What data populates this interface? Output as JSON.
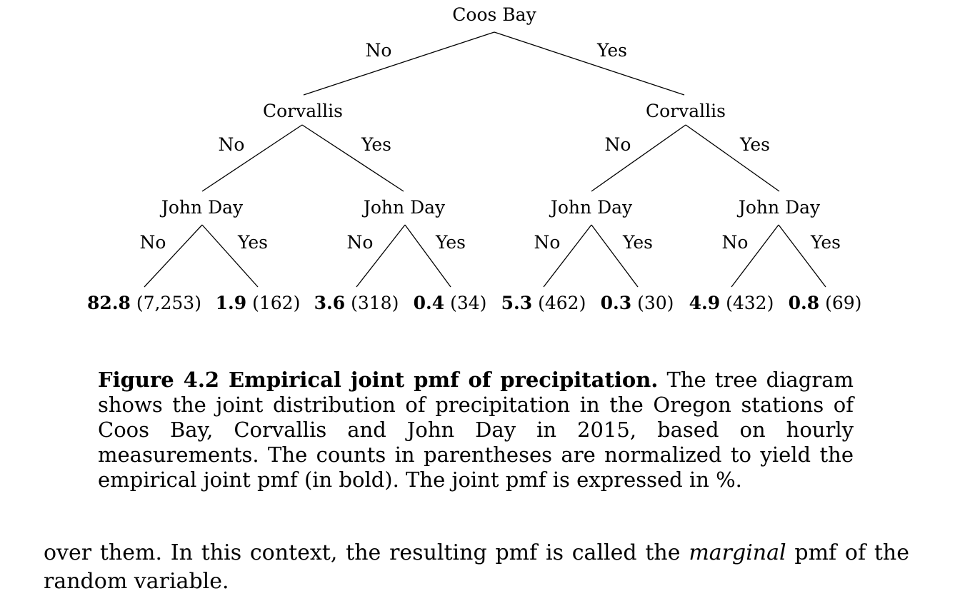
{
  "tree": {
    "root": "Coos Bay",
    "level1": [
      "Corvallis",
      "Corvallis"
    ],
    "level2": [
      "John Day",
      "John Day",
      "John Day",
      "John Day"
    ],
    "branch_no": "No",
    "branch_yes": "Yes",
    "leaves": [
      {
        "pmf": "82.8",
        "count": "(7,253)"
      },
      {
        "pmf": "1.9",
        "count": "(162)"
      },
      {
        "pmf": "3.6",
        "count": "(318)"
      },
      {
        "pmf": "0.4",
        "count": "(34)"
      },
      {
        "pmf": "5.3",
        "count": "(462)"
      },
      {
        "pmf": "0.3",
        "count": "(30)"
      },
      {
        "pmf": "4.9",
        "count": "(432)"
      },
      {
        "pmf": "0.8",
        "count": "(69)"
      }
    ]
  },
  "caption": {
    "title": "Figure 4.2 Empirical joint pmf of precipitation.",
    "text": "The tree diagram shows the joint distribution of precipitation in the Oregon stations of Coos Bay, Corvallis and John Day in 2015, based on hourly measurements. The counts in parentheses are normalized to yield the empirical joint pmf (in bold). The joint pmf is expressed in %."
  },
  "body": {
    "before": "over them. In this context, the resulting pmf is called the",
    "emphasis": "marginal",
    "after": "pmf of the random variable."
  }
}
